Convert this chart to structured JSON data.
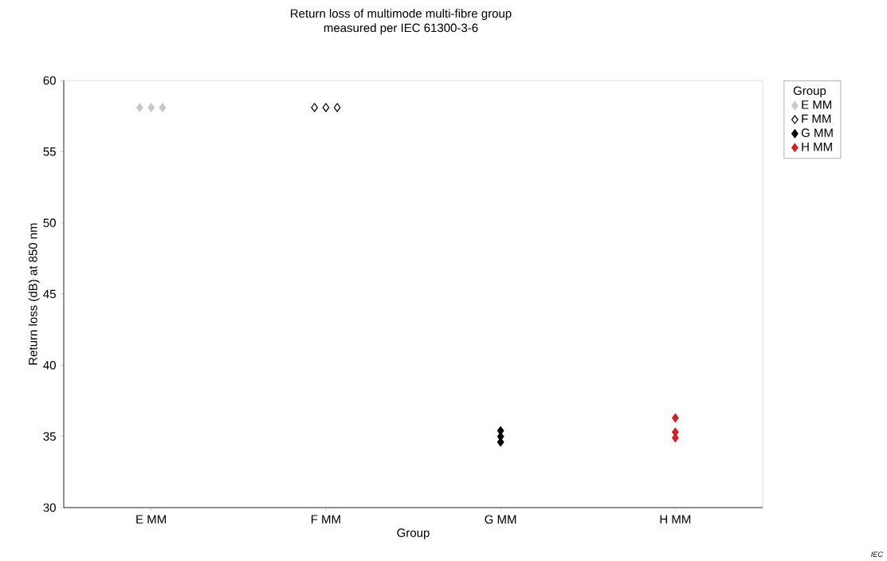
{
  "chart_data": {
    "type": "scatter",
    "title": "Return loss of multimode multi-fibre group",
    "subtitle": "measured per IEC 61300-3-6",
    "xlabel": "Group",
    "ylabel": "Return loss  (dB) at 850 nm",
    "legend_title": "Group",
    "categories": [
      "E MM",
      "F MM",
      "G MM",
      "H MM"
    ],
    "series": [
      {
        "name": "E MM",
        "color": "#c8c8c8",
        "x": [
          "E MM",
          "E MM",
          "E MM"
        ],
        "values": [
          58.1,
          58.1,
          58.1
        ]
      },
      {
        "name": "F MM",
        "color": "#ffffff",
        "x": [
          "F MM",
          "F MM",
          "F MM"
        ],
        "values": [
          58.1,
          58.1,
          58.1
        ]
      },
      {
        "name": "G MM",
        "color": "#000000",
        "x": [
          "G MM",
          "G MM",
          "G MM"
        ],
        "values": [
          35.4,
          35.0,
          34.6
        ]
      },
      {
        "name": "H MM",
        "color": "#d0202a",
        "x": [
          "H MM",
          "H MM",
          "H MM"
        ],
        "values": [
          36.3,
          35.3,
          34.9
        ]
      }
    ],
    "ylim": [
      30,
      60
    ],
    "yticks": [
      30,
      35,
      40,
      45,
      50,
      55,
      60
    ],
    "marker": "diamond",
    "legend": "top right",
    "grid": false,
    "annotations": [
      "IEC"
    ]
  }
}
